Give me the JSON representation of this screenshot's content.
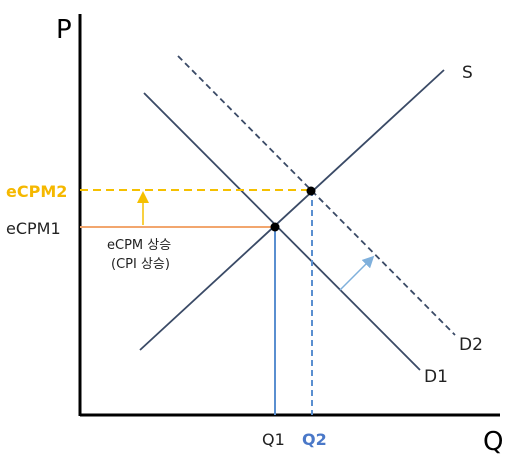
{
  "axes": {
    "y_label": "P",
    "x_label": "Q"
  },
  "curves": {
    "supply": "S",
    "demand1": "D1",
    "demand2": "D2"
  },
  "price_levels": {
    "ecpm1": "eCPM1",
    "ecpm2": "eCPM2"
  },
  "quantity_levels": {
    "q1": "Q1",
    "q2": "Q2"
  },
  "annotation": {
    "line1": "eCPM 상승",
    "line2": "(CPI 상승)"
  },
  "colors": {
    "axis": "#000000",
    "curve": "#3a4a66",
    "ecpm1_line": "#f2a66e",
    "ecpm2_line": "#f5c000",
    "ecpm2_text": "#f5b800",
    "q1_line": "#5a8fd0",
    "q2_line": "#5a8fd0",
    "q2_text": "#4a78c8",
    "shift_arrow": "#7fb0dc"
  }
}
